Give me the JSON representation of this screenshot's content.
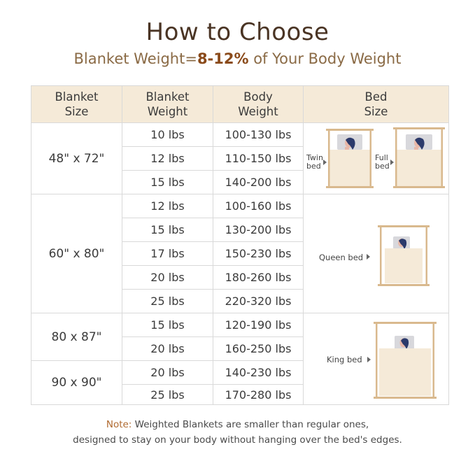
{
  "title": "How to Choose",
  "subtitle": {
    "prefix": "Blanket Weight=",
    "highlight": "8-12%",
    "suffix": " of Your Body Weight"
  },
  "table": {
    "headers": [
      [
        "Blanket",
        "Size"
      ],
      [
        "Blanket",
        "Weight"
      ],
      [
        "Body",
        "Weight"
      ],
      [
        "Bed",
        "Size"
      ]
    ],
    "rows": [
      {
        "weight": "10 lbs",
        "body": "100-130 lbs"
      },
      {
        "weight": "12 lbs",
        "body": "110-150 lbs"
      },
      {
        "weight": "15 lbs",
        "body": "140-200 lbs"
      },
      {
        "weight": "12 lbs",
        "body": "100-160 lbs"
      },
      {
        "weight": "15 lbs",
        "body": "130-200 lbs"
      },
      {
        "weight": "17 lbs",
        "body": "150-230 lbs"
      },
      {
        "weight": "20 lbs",
        "body": "180-260 lbs"
      },
      {
        "weight": "25 lbs",
        "body": "220-320 lbs"
      },
      {
        "weight": "15 lbs",
        "body": "120-190 lbs"
      },
      {
        "weight": "20 lbs",
        "body": "160-250 lbs"
      },
      {
        "weight": "20 lbs",
        "body": "140-230 lbs"
      },
      {
        "weight": "25 lbs",
        "body": "170-280 lbs"
      }
    ],
    "sizes": [
      "48\" x 72\"",
      "60\" x 80\"",
      "80 x 87\"",
      "90 x 90\""
    ],
    "beds": {
      "twin": [
        "Twin",
        "bed"
      ],
      "full": [
        "Full",
        "bed"
      ],
      "queen": "Queen bed",
      "king": "King  bed"
    }
  },
  "note": {
    "label": "Note:",
    "line1": " Weighted Blankets are smaller than regular ones,",
    "line2": "designed to stay on your body without hanging over the bed's edges."
  },
  "colors": {
    "header_bg": "#f5ead8",
    "bed_frame": "#d9b98e",
    "blanket": "#f5ead8",
    "hair": "#2b3a6b",
    "title": "#4a3424"
  }
}
